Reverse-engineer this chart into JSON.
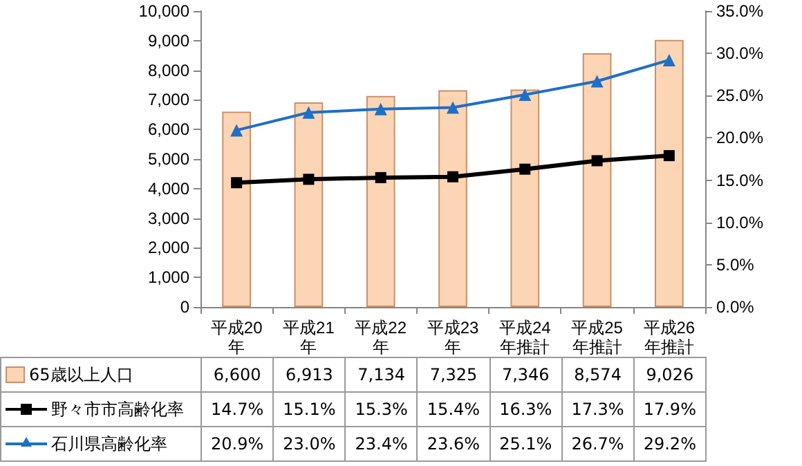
{
  "chart_data": {
    "type": "bar",
    "categories": [
      "平成20年",
      "平成21年",
      "平成22年",
      "平成23年",
      "平成24年推計",
      "平成25年推計",
      "平成26年推計"
    ],
    "series": [
      {
        "name": "65歳以上人口",
        "color": "#fcd5b5",
        "values": [
          6600,
          6913,
          7134,
          7325,
          7346,
          8574,
          9026
        ]
      },
      {
        "name": "野々市市高齢化率",
        "type": "line",
        "axis": "y2",
        "color": "#000000",
        "marker": "square",
        "values": [
          14.7,
          15.1,
          15.3,
          15.4,
          16.3,
          17.3,
          17.9
        ]
      },
      {
        "name": "石川県高齢化率",
        "type": "line",
        "axis": "y2",
        "color": "#1f6fc5",
        "marker": "triangle",
        "values": [
          20.9,
          23.0,
          23.4,
          23.6,
          25.1,
          26.7,
          29.2
        ]
      }
    ],
    "ylim": [
      0,
      10000
    ],
    "yticks": [
      0,
      {
        "value": 1000,
        "label": "1,000"
      },
      {
        "value": 2000,
        "label": "2,000"
      },
      {
        "value": 3000,
        "label": "3,000"
      },
      {
        "value": 4000,
        "label": "4,000"
      },
      {
        "value": 5000,
        "label": "5,000"
      },
      {
        "value": 6000,
        "label": "6,000"
      },
      {
        "value": 7000,
        "label": "7,000"
      },
      {
        "value": 8000,
        "label": "8,000"
      },
      {
        "value": 9000,
        "label": "9,000"
      },
      {
        "value": 10000,
        "label": "10,000"
      }
    ],
    "y2lim": [
      0,
      35
    ],
    "y2ticks": [
      {
        "value": 0,
        "label": "0.0%"
      },
      {
        "value": 5,
        "label": "5.0%"
      },
      {
        "value": 10,
        "label": "10.0%"
      },
      {
        "value": 15,
        "label": "15.0%"
      },
      {
        "value": 20,
        "label": "20.0%"
      },
      {
        "value": 25,
        "label": "25.0%"
      },
      {
        "value": 30,
        "label": "30.0%"
      },
      {
        "value": 35,
        "label": "35.0%"
      }
    ],
    "value_labels": [
      [
        "6,600",
        "6,913",
        "7,134",
        "7,325",
        "7,346",
        "8,574",
        "9,026"
      ],
      [
        "14.7%",
        "15.1%",
        "15.3%",
        "15.4%",
        "16.3%",
        "17.3%",
        "17.9%"
      ],
      [
        "20.9%",
        "23.0%",
        "23.4%",
        "23.6%",
        "25.1%",
        "26.7%",
        "29.2%"
      ]
    ],
    "legend": "bottom",
    "line_style": "solid"
  }
}
